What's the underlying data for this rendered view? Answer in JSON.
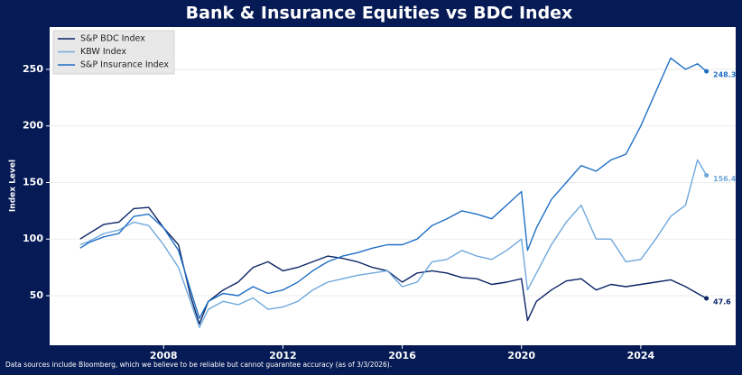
{
  "chart_data": {
    "type": "line",
    "title": "Bank & Insurance Equities vs BDC Index",
    "y_label": "Index Level",
    "footnote": "Data sources include Bloomberg, which we believe to be reliable but cannot guarantee accuracy (as of 3/3/2026).",
    "x": [
      2005.2,
      2005.5,
      2006,
      2006.5,
      2007,
      2007.5,
      2008,
      2008.5,
      2008.9,
      2009.2,
      2009.5,
      2010,
      2010.5,
      2011,
      2011.5,
      2012,
      2012.5,
      2013,
      2013.5,
      2014,
      2014.5,
      2015,
      2015.5,
      2016,
      2016.5,
      2017,
      2017.5,
      2018,
      2018.5,
      2019,
      2019.5,
      2020,
      2020.2,
      2020.5,
      2021,
      2021.5,
      2022,
      2022.5,
      2023,
      2023.5,
      2024,
      2024.5,
      2025,
      2025.5,
      2025.9,
      2026.2
    ],
    "series": [
      {
        "name": "S&P BDC Index",
        "color": "#0b2466",
        "values": [
          100,
          105,
          113,
          115,
          127,
          128,
          110,
          95,
          50,
          25,
          45,
          55,
          62,
          75,
          80,
          72,
          75,
          80,
          85,
          83,
          80,
          75,
          72,
          62,
          70,
          72,
          70,
          66,
          65,
          60,
          62,
          65,
          28,
          45,
          55,
          63,
          65,
          55,
          60,
          58,
          60,
          62,
          64,
          58,
          52,
          47.6
        ]
      },
      {
        "name": "KBW Index",
        "color": "#6fa8dc",
        "values": [
          95,
          98,
          105,
          108,
          115,
          112,
          95,
          75,
          45,
          22,
          38,
          45,
          42,
          48,
          38,
          40,
          45,
          55,
          62,
          65,
          68,
          70,
          72,
          58,
          62,
          80,
          82,
          90,
          85,
          82,
          90,
          100,
          55,
          70,
          95,
          115,
          130,
          100,
          100,
          80,
          82,
          100,
          120,
          130,
          170,
          156.4
        ]
      },
      {
        "name": "S&P Insurance Index",
        "color": "#1f6fc5",
        "values": [
          92,
          97,
          102,
          105,
          120,
          122,
          110,
          90,
          55,
          30,
          45,
          52,
          50,
          58,
          52,
          55,
          62,
          72,
          80,
          85,
          88,
          92,
          95,
          95,
          100,
          112,
          118,
          125,
          122,
          118,
          130,
          142,
          90,
          110,
          135,
          150,
          165,
          160,
          170,
          175,
          200,
          230,
          260,
          250,
          255,
          248.3
        ]
      }
    ],
    "xlim": [
      2004.18,
      2027.18
    ],
    "xticks": [
      2008,
      2012,
      2016,
      2020,
      2024
    ],
    "ylim": [
      6.2,
      287.4
    ],
    "yticks": [
      50,
      100,
      150,
      200,
      250
    ],
    "grid": true,
    "legend": "upper left"
  }
}
